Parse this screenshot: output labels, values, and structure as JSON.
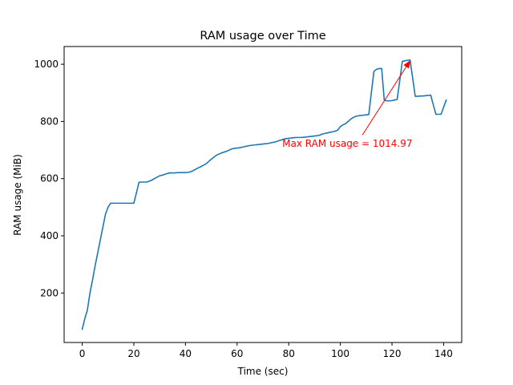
{
  "chart_data": {
    "type": "line",
    "title": "RAM usage over Time",
    "xlabel": "Time (sec)",
    "ylabel": "RAM usage (MiB)",
    "xlim": [
      -7,
      147
    ],
    "ylim": [
      27,
      1062
    ],
    "x_ticks": [
      0,
      20,
      40,
      60,
      80,
      100,
      120,
      140
    ],
    "y_ticks": [
      200,
      400,
      600,
      800,
      1000
    ],
    "grid": false,
    "line_color": "#1f77b4",
    "series": [
      {
        "x": [
          0,
          1,
          2,
          3,
          4,
          5,
          6,
          7,
          8,
          9,
          10,
          11,
          12,
          13,
          14,
          15,
          16,
          17,
          18,
          19,
          20,
          21,
          22,
          23,
          24,
          25,
          26,
          27,
          28,
          29,
          30,
          31,
          32,
          33,
          34,
          35,
          36,
          37,
          38,
          39,
          40,
          41,
          42,
          43,
          44,
          45,
          46,
          47,
          48,
          49,
          50,
          51,
          52,
          53,
          54,
          55,
          56,
          57,
          58,
          59,
          60,
          61,
          62,
          63,
          64,
          65,
          66,
          67,
          68,
          69,
          70,
          71,
          72,
          73,
          74,
          75,
          76,
          77,
          78,
          79,
          80,
          81,
          82,
          83,
          84,
          85,
          86,
          87,
          88,
          89,
          90,
          91,
          92,
          93,
          94,
          95,
          96,
          97,
          98,
          99,
          100,
          101,
          102,
          103,
          104,
          105,
          106,
          107,
          108,
          109,
          110,
          111,
          112,
          113,
          114,
          115,
          116,
          117,
          118,
          119,
          120,
          121,
          122,
          123,
          124,
          125,
          126,
          127,
          128,
          129,
          130,
          131,
          132,
          133,
          134,
          135,
          136,
          137,
          138,
          139,
          140,
          141
        ],
        "y": [
          73,
          110,
          140,
          200,
          245,
          295,
          340,
          385,
          430,
          475,
          500,
          514,
          514,
          514,
          514,
          514,
          514,
          514,
          514,
          514,
          514,
          550,
          587,
          588,
          588,
          588,
          591,
          595,
          600,
          605,
          610,
          612,
          615,
          618,
          620,
          620,
          620,
          621,
          621,
          621,
          621,
          622,
          624,
          628,
          633,
          638,
          642,
          647,
          652,
          660,
          668,
          675,
          682,
          686,
          690,
          693,
          696,
          700,
          704,
          706,
          707,
          708,
          710,
          712,
          714,
          716,
          717,
          718,
          719,
          720,
          721,
          722,
          723,
          725,
          727,
          729,
          732,
          735,
          738,
          740,
          741,
          742,
          743,
          744,
          744,
          744,
          745,
          746,
          747,
          748,
          749,
          750,
          752,
          756,
          758,
          760,
          762,
          764,
          766,
          770,
          782,
          788,
          792,
          800,
          808,
          814,
          818,
          820,
          821,
          822,
          823,
          824,
          900,
          975,
          982,
          985,
          985,
          875,
          872,
          872,
          873,
          875,
          877,
          943,
          1010,
          1012,
          1014,
          1015,
          952,
          888,
          888,
          889,
          889,
          890,
          891,
          892,
          858,
          825,
          825,
          825,
          850,
          875
        ]
      }
    ],
    "annotation": {
      "text": "Max RAM usage = 1014.97",
      "text_x": 77.5,
      "text_y": 722,
      "point_x": 127,
      "point_y": 1014.97,
      "color": "#ff0000"
    }
  }
}
